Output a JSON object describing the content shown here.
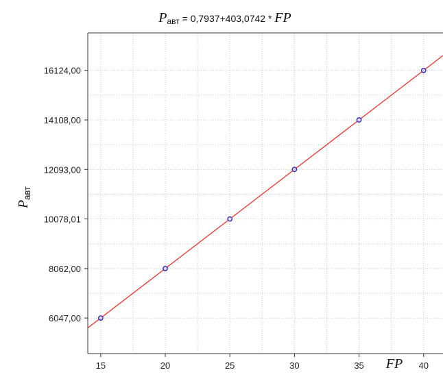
{
  "chart_data": {
    "type": "scatter",
    "title": {
      "var": "P",
      "sub": "авт",
      "expr": " = 0,7937+403,0742  *  ",
      "fp": "FP"
    },
    "xlabel": "FP",
    "ylabel": {
      "var": "P",
      "sub": "авт"
    },
    "xlim": [
      14,
      41.5
    ],
    "ylim": [
      4600,
      17650
    ],
    "x_ticks": [
      15,
      20,
      25,
      30,
      35,
      40
    ],
    "x_tick_labels": [
      "15",
      "20",
      "25",
      "30",
      "35",
      "40"
    ],
    "y_ticks": [
      6047.0,
      8062.0,
      10078.01,
      12093.0,
      14108.0,
      16124.0
    ],
    "y_tick_labels": [
      "6047,00",
      "8062,00",
      "10078,01",
      "12093,00",
      "14108,00",
      "16124,00"
    ],
    "points": [
      {
        "x": 15,
        "y": 6047.0
      },
      {
        "x": 20,
        "y": 8062.0
      },
      {
        "x": 25,
        "y": 10078.01
      },
      {
        "x": 30,
        "y": 12093.0
      },
      {
        "x": 35,
        "y": 14108.0
      },
      {
        "x": 40,
        "y": 16124.0
      }
    ],
    "fit_line": {
      "intercept": 0.7937,
      "slope": 403.0742
    },
    "grid": true,
    "colors": {
      "line": "#e8413c",
      "marker": "#2a1fb0",
      "grid": "#c8c8c8",
      "axis": "#333333"
    }
  }
}
